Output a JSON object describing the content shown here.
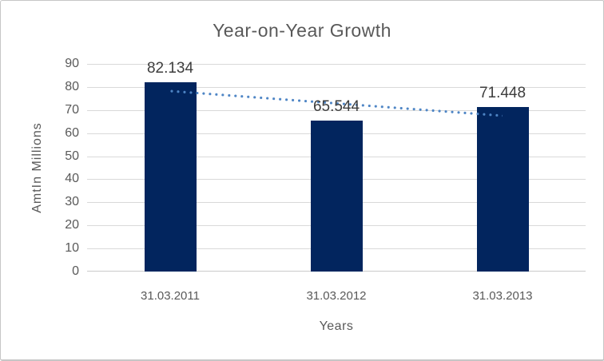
{
  "chart_data": {
    "type": "bar",
    "title": "Year-on-Year Growth",
    "xlabel": "Years",
    "ylabel": "AmtIn Millions",
    "categories": [
      "31.03.2011",
      "31.03.2012",
      "31.03.2013"
    ],
    "values": [
      82.134,
      65.544,
      71.448
    ],
    "data_labels": [
      "82.134",
      "65.544",
      "71.448"
    ],
    "ylim": [
      0,
      90
    ],
    "yticks": [
      0,
      10,
      20,
      30,
      40,
      50,
      60,
      70,
      80,
      90
    ],
    "grid": true,
    "legend_position": "none",
    "bar_color": "#02255e",
    "gridline_color": "#d9d9d9",
    "text_color": "#595959",
    "data_label_color": "#3d3d3d",
    "trendline": {
      "type": "linear",
      "line_style": "dotted",
      "color": "#4e85c5",
      "start_value": 78.4,
      "end_value": 67.7,
      "start_category_index": 0,
      "end_category_index": 2
    }
  }
}
